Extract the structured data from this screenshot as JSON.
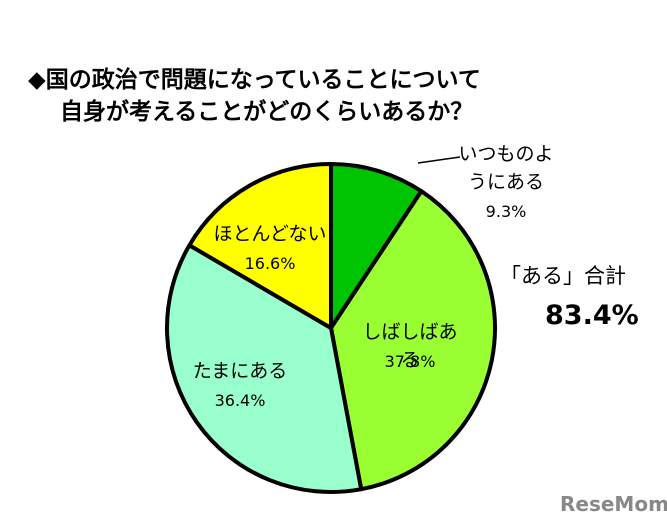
{
  "chart_data": {
    "type": "pie",
    "title": [
      "◆国の政治で問題になっていることについて",
      "自身が考えることがどのくらいあるか？"
    ],
    "categories": [
      "いつものようにある",
      "しばしばある",
      "たまにある",
      "ほとんどない"
    ],
    "values": [
      9.3,
      37.8,
      36.4,
      16.6
    ],
    "value_labels": [
      "9.3%",
      "37.8%",
      "36.4%",
      "16.6%"
    ],
    "colors": [
      "#00c400",
      "#99ff33",
      "#99ffcc",
      "#ffff00"
    ],
    "annotations": [
      "「ある」合計",
      "83.4%"
    ],
    "watermark": "ReseMom"
  }
}
